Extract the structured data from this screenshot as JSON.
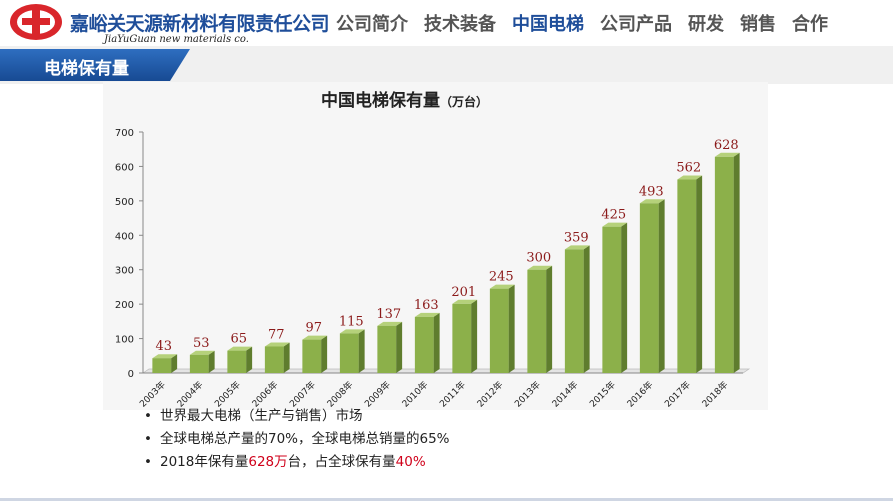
{
  "header": {
    "company_name": "嘉峪关天源新材料有限责任公司",
    "company_name_en": "JiaYuGuan new materials co.",
    "nav": [
      {
        "label": "公司简介",
        "active": false
      },
      {
        "label": "技术装备",
        "active": false
      },
      {
        "label": "中国电梯",
        "active": true
      },
      {
        "label": "公司产品",
        "active": false
      },
      {
        "label": "研发",
        "active": false
      },
      {
        "label": "销售",
        "active": false
      },
      {
        "label": "合作",
        "active": false
      }
    ]
  },
  "section": {
    "title": "电梯保有量"
  },
  "chart_data": {
    "type": "bar",
    "title": "中国电梯保有量",
    "title_unit": "（万台）",
    "categories": [
      "2003年",
      "2004年",
      "2005年",
      "2006年",
      "2007年",
      "2008年",
      "2009年",
      "2010年",
      "2011年",
      "2012年",
      "2013年",
      "2014年",
      "2015年",
      "2016年",
      "2017年",
      "2018年"
    ],
    "values": [
      43,
      53,
      65,
      77,
      97,
      115,
      137,
      163,
      201,
      245,
      300,
      359,
      425,
      493,
      562,
      628
    ],
    "ylim": [
      0,
      700
    ],
    "yticks": [
      0,
      100,
      200,
      300,
      400,
      500,
      600,
      700
    ],
    "grid": false,
    "bar_color": "#8cb04a",
    "label_color": "#8b1a1a"
  },
  "bullets": [
    {
      "parts": [
        {
          "text": "世界最大电梯（生产与销售）市场",
          "red": false
        }
      ]
    },
    {
      "parts": [
        {
          "text": "全球电梯总产量的70%，全球电梯总销量的65%",
          "red": false
        }
      ]
    },
    {
      "parts": [
        {
          "text": "2018年保有量",
          "red": false
        },
        {
          "text": "628万",
          "red": true
        },
        {
          "text": "台，占全球保有量",
          "red": false
        },
        {
          "text": "40%",
          "red": true
        }
      ]
    }
  ]
}
